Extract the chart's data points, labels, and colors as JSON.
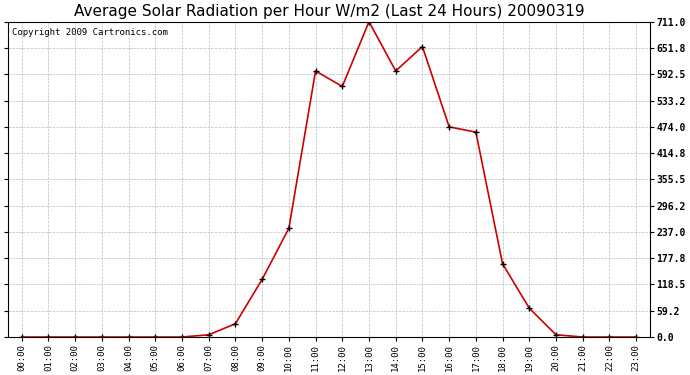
{
  "title": "Average Solar Radiation per Hour W/m2 (Last 24 Hours) 20090319",
  "copyright": "Copyright 2009 Cartronics.com",
  "hours": [
    "00:00",
    "01:00",
    "02:00",
    "03:00",
    "04:00",
    "05:00",
    "06:00",
    "07:00",
    "08:00",
    "09:00",
    "10:00",
    "11:00",
    "12:00",
    "13:00",
    "14:00",
    "15:00",
    "16:00",
    "17:00",
    "18:00",
    "19:00",
    "20:00",
    "21:00",
    "22:00",
    "23:00"
  ],
  "values": [
    0,
    0,
    0,
    0,
    0,
    0,
    0,
    5,
    30,
    130,
    245,
    600,
    565,
    711,
    600,
    655,
    474,
    462,
    165,
    65,
    5,
    0,
    0,
    0
  ],
  "y_ticks": [
    0.0,
    59.2,
    118.5,
    177.8,
    237.0,
    296.2,
    355.5,
    414.8,
    474.0,
    533.2,
    592.5,
    651.8,
    711.0
  ],
  "ymax": 711.0,
  "ymin": 0.0,
  "line_color": "#cc0000",
  "marker_color": "#000000",
  "bg_color": "#ffffff",
  "grid_color": "#bbbbbb",
  "title_fontsize": 11,
  "copyright_fontsize": 6.5
}
